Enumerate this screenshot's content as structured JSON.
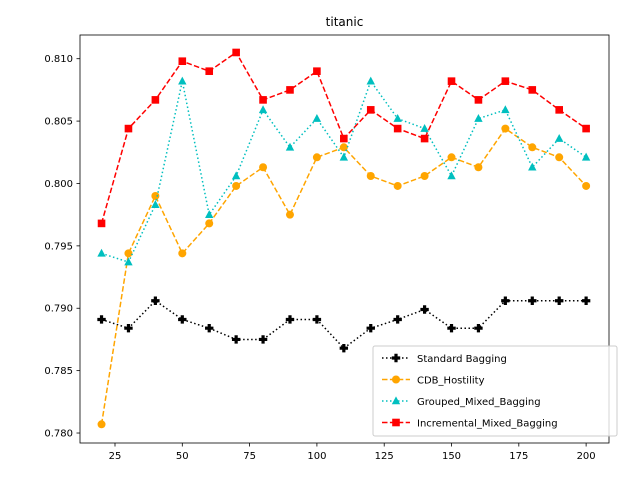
{
  "chart_data": {
    "type": "line",
    "title": "titanic",
    "xlabel": "",
    "ylabel": "",
    "x": [
      20,
      30,
      40,
      50,
      60,
      70,
      80,
      90,
      100,
      110,
      120,
      130,
      140,
      150,
      160,
      170,
      180,
      190,
      200
    ],
    "xlim": [
      12,
      208.5
    ],
    "ylim": [
      0.7792,
      0.8119
    ],
    "xticks": [
      25,
      50,
      75,
      100,
      125,
      150,
      175,
      200
    ],
    "xtick_labels": [
      "25",
      "50",
      "75",
      "100",
      "125",
      "150",
      "175",
      "200"
    ],
    "yticks": [
      0.78,
      0.785,
      0.79,
      0.795,
      0.8,
      0.805,
      0.81
    ],
    "ytick_labels": [
      "0.780",
      "0.785",
      "0.790",
      "0.795",
      "0.800",
      "0.805",
      "0.810"
    ],
    "grid": false,
    "legend_position": "lower-right",
    "series": [
      {
        "name": "Standard Bagging",
        "color": "#000000",
        "linestyle": "dotted",
        "marker": "plus",
        "values": [
          0.7891,
          0.7884,
          0.7906,
          0.7891,
          0.7884,
          0.7875,
          0.7875,
          0.7891,
          0.7891,
          0.7868,
          0.7884,
          0.7891,
          0.7899,
          0.7884,
          0.7884,
          0.7906,
          0.7906,
          0.7906,
          0.7906
        ]
      },
      {
        "name": "CDB_Hostility",
        "color": "#ffa500",
        "linestyle": "dashed",
        "marker": "circle",
        "values": [
          0.7807,
          0.7944,
          0.799,
          0.7944,
          0.7968,
          0.7998,
          0.8013,
          0.7975,
          0.8021,
          0.8029,
          0.8006,
          0.7998,
          0.8006,
          0.8021,
          0.8013,
          0.8044,
          0.8029,
          0.8021,
          0.7998
        ]
      },
      {
        "name": "Grouped_Mixed_Bagging",
        "color": "#00bfbf",
        "linestyle": "dotted",
        "marker": "triangle",
        "values": [
          0.7944,
          0.7937,
          0.7983,
          0.8082,
          0.7975,
          0.8006,
          0.8059,
          0.8029,
          0.8052,
          0.8021,
          0.8082,
          0.8052,
          0.8044,
          0.8006,
          0.8052,
          0.8059,
          0.8013,
          0.8036,
          0.8021
        ]
      },
      {
        "name": "Incremental_Mixed_Bagging",
        "color": "#ff0000",
        "linestyle": "dashed",
        "marker": "square",
        "values": [
          0.7968,
          0.8044,
          0.8067,
          0.8098,
          0.809,
          0.8105,
          0.8067,
          0.8075,
          0.809,
          0.8036,
          0.8059,
          0.8044,
          0.8036,
          0.8082,
          0.8067,
          0.8082,
          0.8075,
          0.8059,
          0.8044
        ]
      }
    ]
  }
}
